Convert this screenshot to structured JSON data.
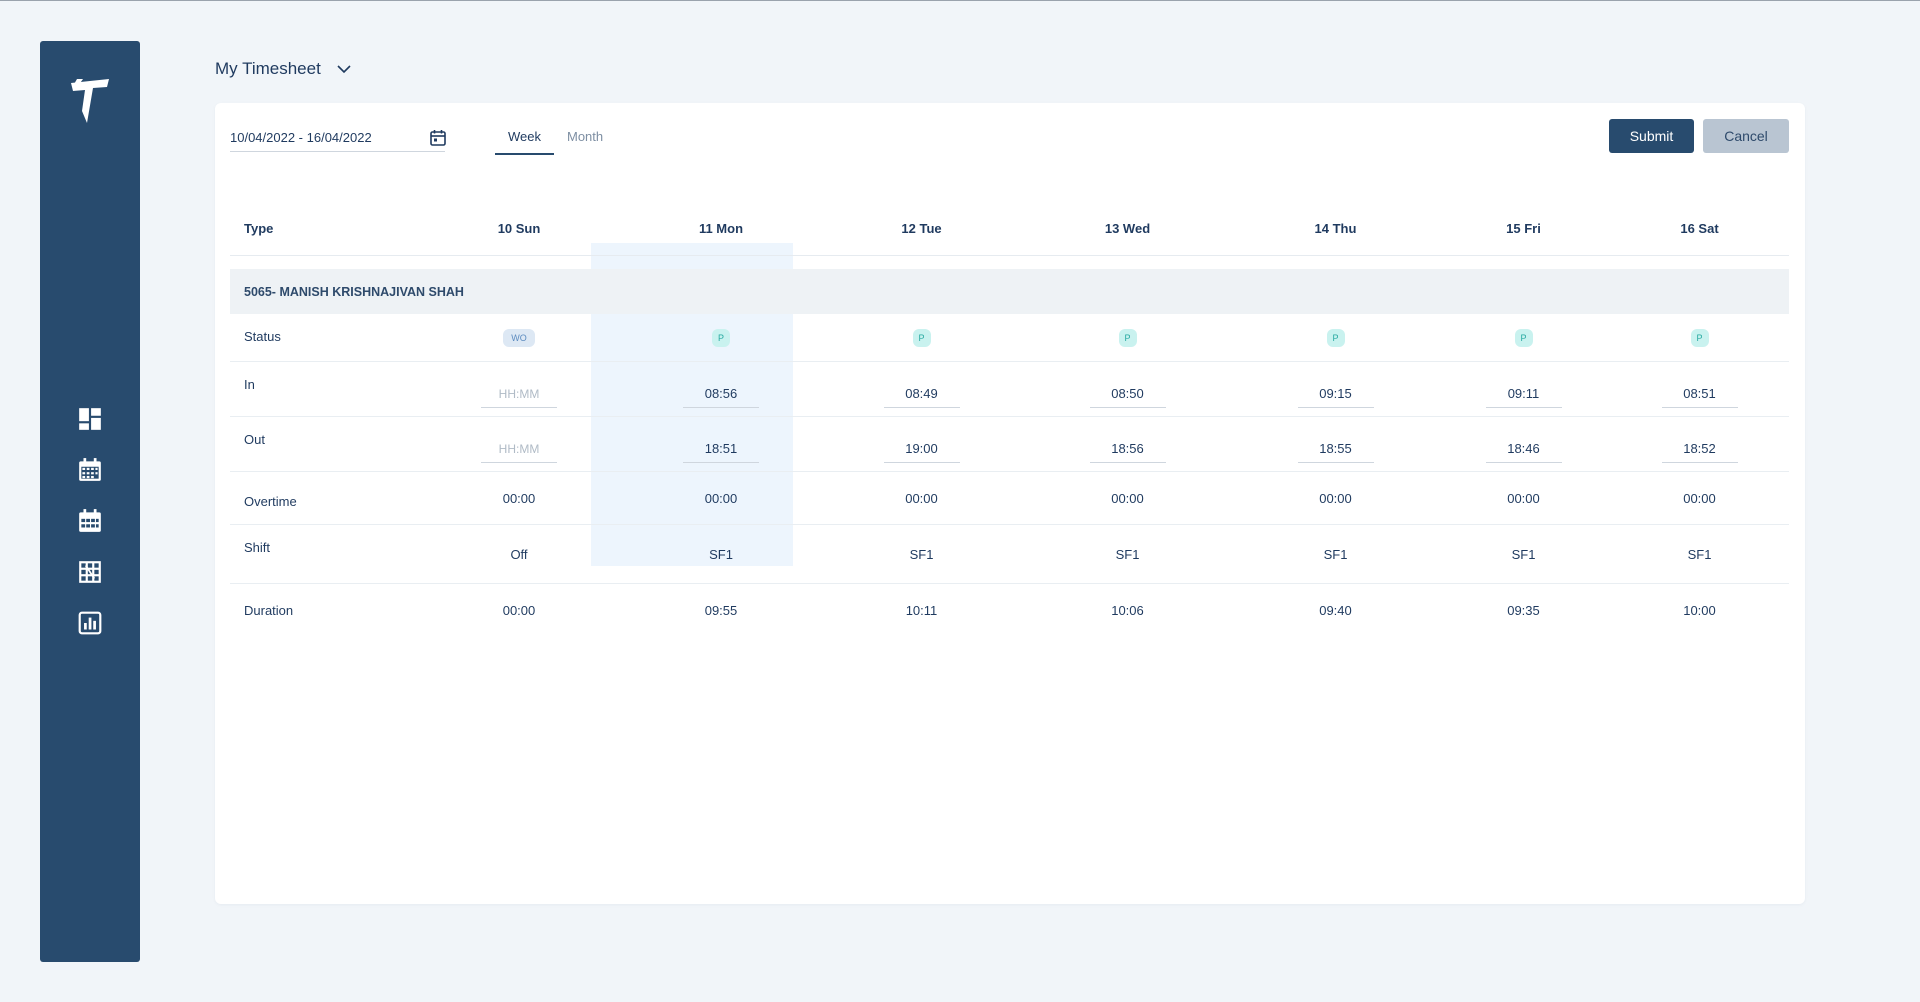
{
  "header": {
    "title": "My Timesheet"
  },
  "sidebar": {
    "icons": [
      "dashboard-icon",
      "calendar-week-icon",
      "calendar-month-icon",
      "calendar-grid-icon",
      "bar-chart-icon"
    ]
  },
  "toolbar": {
    "date_range": "10/04/2022 - 16/04/2022",
    "tabs": [
      {
        "label": "Week",
        "active": true
      },
      {
        "label": "Month",
        "active": false
      }
    ],
    "submit_label": "Submit",
    "cancel_label": "Cancel"
  },
  "table": {
    "type_header": "Type",
    "days": [
      "10 Sun",
      "11 Mon",
      "12 Tue",
      "13 Wed",
      "14 Thu",
      "15 Fri",
      "16 Sat"
    ],
    "highlighted_day": "11 Mon",
    "employee": "5065- MANISH KRISHNAJIVAN SHAH",
    "rows": {
      "status": {
        "label": "Status",
        "values": [
          "WO",
          "P",
          "P",
          "P",
          "P",
          "P",
          "P"
        ]
      },
      "in": {
        "label": "In",
        "placeholder": "HH:MM",
        "values": [
          "",
          "08:56",
          "08:49",
          "08:50",
          "09:15",
          "09:11",
          "08:51"
        ]
      },
      "out": {
        "label": "Out",
        "placeholder": "HH:MM",
        "values": [
          "",
          "18:51",
          "19:00",
          "18:56",
          "18:55",
          "18:46",
          "18:52"
        ]
      },
      "overtime": {
        "label": "Overtime",
        "values": [
          "00:00",
          "00:00",
          "00:00",
          "00:00",
          "00:00",
          "00:00",
          "00:00"
        ]
      },
      "shift": {
        "label": "Shift",
        "values": [
          "Off",
          "SF1",
          "SF1",
          "SF1",
          "SF1",
          "SF1",
          "SF1"
        ]
      },
      "duration": {
        "label": "Duration",
        "values": [
          "00:00",
          "09:55",
          "10:11",
          "10:06",
          "09:40",
          "09:35",
          "10:00"
        ]
      }
    }
  },
  "colors": {
    "sidebar": "#284b6e",
    "primary": "#284b6e",
    "cancel": "#b9c5d2",
    "highlight_column": "#edf5fd",
    "badge_present_bg": "#c9f2ef",
    "badge_weekoff_bg": "#dde8f4"
  }
}
